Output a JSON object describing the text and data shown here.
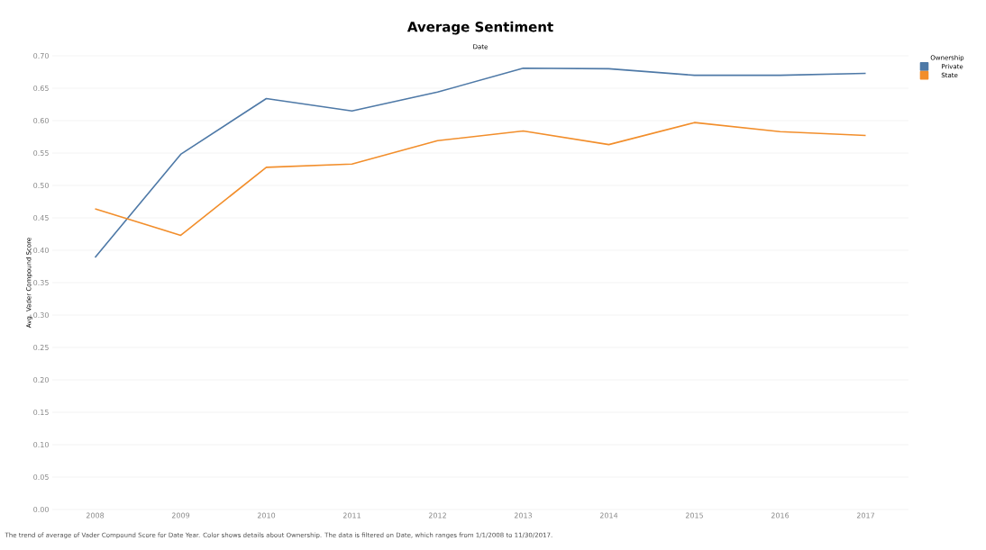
{
  "chart_data": {
    "type": "line",
    "title": "Average Sentiment",
    "xlabel": "Date",
    "ylabel": "Avg. Vader Compound Score",
    "legend_title": "Ownership",
    "categories": [
      "2008",
      "2009",
      "2010",
      "2011",
      "2012",
      "2013",
      "2014",
      "2015",
      "2016",
      "2017"
    ],
    "series": [
      {
        "name": "Private",
        "color": "#4e79a7",
        "values": [
          0.389,
          0.548,
          0.634,
          0.615,
          0.644,
          0.681,
          0.68,
          0.67,
          0.67,
          0.673
        ]
      },
      {
        "name": "State",
        "color": "#f28e2b",
        "values": [
          0.464,
          0.423,
          0.528,
          0.533,
          0.569,
          0.584,
          0.563,
          0.597,
          0.583,
          0.577
        ]
      }
    ],
    "ylim": [
      0,
      0.7
    ],
    "yticks": [
      {
        "value": 0,
        "label": "0.00"
      },
      {
        "value": 0.05,
        "label": "0.05"
      },
      {
        "value": 0.1,
        "label": "0.10"
      },
      {
        "value": 0.15,
        "label": "0.15"
      },
      {
        "value": 0.2,
        "label": "0.20"
      },
      {
        "value": 0.25,
        "label": "0.25"
      },
      {
        "value": 0.3,
        "label": "0.30"
      },
      {
        "value": 0.35,
        "label": "0.35"
      },
      {
        "value": 0.4,
        "label": "0.40"
      },
      {
        "value": 0.45,
        "label": "0.45"
      },
      {
        "value": 0.5,
        "label": "0.50"
      },
      {
        "value": 0.55,
        "label": "0.55"
      },
      {
        "value": 0.6,
        "label": "0.60"
      },
      {
        "value": 0.65,
        "label": "0.65"
      },
      {
        "value": 0.7,
        "label": "0.70"
      }
    ],
    "grid": "y",
    "legend": "top right",
    "marker": "none",
    "line_style": "solid",
    "annotations": [
      "The trend of average of Vader Compound Score for Date Year.  Color shows details about Ownership. The data is filtered on Date, which ranges from 1/1/2008 to 11/30/2017."
    ]
  }
}
